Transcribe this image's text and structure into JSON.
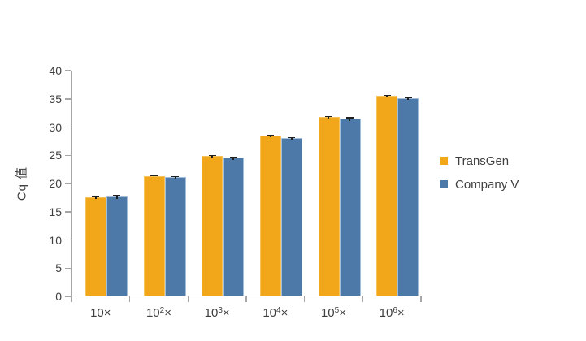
{
  "chart_data": {
    "type": "bar",
    "title": "",
    "xlabel": "",
    "ylabel": "Cq 值",
    "ylim": [
      0,
      40
    ],
    "ytick_step": 5,
    "grid": false,
    "legend_position": "right",
    "categories": [
      "10×",
      "10²×",
      "10³×",
      "10⁴×",
      "10⁵×",
      "10⁶×"
    ],
    "categories_rich": [
      {
        "base": "10",
        "exp": "",
        "suffix": "×"
      },
      {
        "base": "10",
        "exp": "2",
        "suffix": "×"
      },
      {
        "base": "10",
        "exp": "3",
        "suffix": "×"
      },
      {
        "base": "10",
        "exp": "4",
        "suffix": "×"
      },
      {
        "base": "10",
        "exp": "5",
        "suffix": "×"
      },
      {
        "base": "10",
        "exp": "6",
        "suffix": "×"
      }
    ],
    "series": [
      {
        "name": "TransGen",
        "color": "#F2A61A",
        "edge_color": "#F6C25C",
        "values": [
          17.4,
          21.2,
          24.8,
          28.4,
          31.7,
          35.4
        ],
        "errors": [
          0.2,
          0.15,
          0.2,
          0.15,
          0.2,
          0.2
        ]
      },
      {
        "name": "Company V",
        "color": "#4C79A8",
        "edge_color": "#A2BEDA",
        "values": [
          17.6,
          21.0,
          24.4,
          27.9,
          31.4,
          35.0
        ],
        "errors": [
          0.3,
          0.2,
          0.2,
          0.2,
          0.25,
          0.2
        ]
      }
    ],
    "axis_color": "#A6A6A6",
    "text_color": "#3F3F3F",
    "errorbar_color": "#1F1F1F"
  }
}
